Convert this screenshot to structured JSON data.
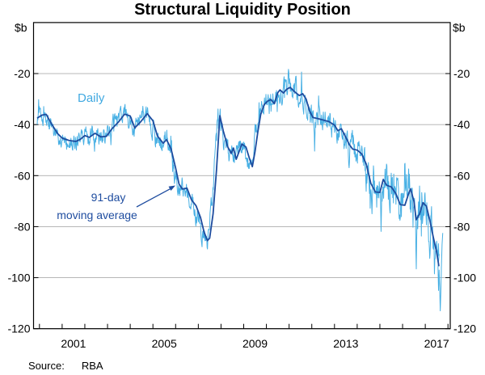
{
  "chart_data": {
    "type": "line",
    "title": "Structural Liquidity Position",
    "source_label": "Source:",
    "source_value": "RBA",
    "colors": {
      "daily_line": "#48B0E4",
      "daily_label": "#41A9E1",
      "ma_line": "#1E4C9F",
      "ma_label": "#1E4C9F",
      "grid": "#ADADAD",
      "axis": "#000000"
    },
    "y_axis": {
      "unit": "$b",
      "min": -120,
      "max": 0,
      "tick_step": 20,
      "tick_values": [
        -20,
        -40,
        -60,
        -80,
        -100,
        -120
      ],
      "tick_labels": [
        "-20",
        "-40",
        "-60",
        "-80",
        "-100",
        "-120"
      ],
      "label_sides": "both",
      "grid": true
    },
    "x_axis": {
      "min": 1999.74,
      "max": 2018.1,
      "tick_years": [
        2000,
        2001,
        2002,
        2003,
        2004,
        2005,
        2006,
        2007,
        2008,
        2009,
        2010,
        2011,
        2012,
        2013,
        2014,
        2015,
        2016,
        2017,
        2018
      ],
      "labels": [
        {
          "text": "2001",
          "t": 2001.5
        },
        {
          "text": "2005",
          "t": 2005.5
        },
        {
          "text": "2009",
          "t": 2009.5
        },
        {
          "text": "2013",
          "t": 2013.5
        },
        {
          "text": "2017",
          "t": 2017.5
        }
      ]
    },
    "annotations": {
      "daily_label": "Daily",
      "ma_label_line1": "91-day",
      "ma_label_line2": "moving average"
    },
    "series": [
      {
        "name": "Daily",
        "color": "#48B0E4",
        "stroke_width": 1,
        "representation": "ma_plus_noise",
        "model": {
          "lead_years": 0.1,
          "step_years": 0.016,
          "start": 1999.9,
          "end": 2017.62,
          "seed": 123457,
          "seasonal_amplitude_ratio": 0.35,
          "amplitude": [
            [
              1999.9,
              3.2
            ],
            [
              2004.5,
              3.6
            ],
            [
              2006.5,
              4.2
            ],
            [
              2008.0,
              3.8
            ],
            [
              2009.5,
              4.0
            ],
            [
              2013.0,
              5.0
            ],
            [
              2014.5,
              7.0
            ],
            [
              2015.2,
              8.0
            ],
            [
              2016.3,
              9.5
            ],
            [
              2017.62,
              9.5
            ]
          ],
          "spikes": [
            [
              2007.4,
              -90
            ],
            [
              2007.96,
              -32.5
            ],
            [
              2010.97,
              -18
            ],
            [
              2011.3,
              -20
            ],
            [
              2014.72,
              -55
            ],
            [
              2015.05,
              -83
            ],
            [
              2016.1,
              -51
            ],
            [
              2016.6,
              -100
            ],
            [
              2017.2,
              -93
            ]
          ],
          "end_points": [
            [
              2017.56,
              -96
            ],
            [
              2017.585,
              -105
            ],
            [
              2017.61,
              -97
            ],
            [
              2017.635,
              -104
            ],
            [
              2017.66,
              -113
            ],
            [
              2017.685,
              -106
            ],
            [
              2017.71,
              -96
            ],
            [
              2017.74,
              -87
            ],
            [
              2017.77,
              -82.5
            ]
          ]
        }
      },
      {
        "name": "91-day moving average",
        "color": "#1E4C9F",
        "stroke_width": 1.8,
        "points": [
          [
            1999.9,
            -37.5
          ],
          [
            2000.1,
            -36.3
          ],
          [
            2000.3,
            -36.0
          ],
          [
            2000.55,
            -40.0
          ],
          [
            2000.8,
            -43.5
          ],
          [
            2001.0,
            -45.3
          ],
          [
            2001.3,
            -46.2
          ],
          [
            2001.6,
            -46.6
          ],
          [
            2001.8,
            -45.8
          ],
          [
            2002.0,
            -44.3
          ],
          [
            2002.2,
            -45.0
          ],
          [
            2002.45,
            -43.4
          ],
          [
            2002.7,
            -44.8
          ],
          [
            2002.95,
            -44.6
          ],
          [
            2003.2,
            -41.6
          ],
          [
            2003.5,
            -38.8
          ],
          [
            2003.75,
            -35.9
          ],
          [
            2004.0,
            -36.6
          ],
          [
            2004.2,
            -41.3
          ],
          [
            2004.45,
            -39.0
          ],
          [
            2004.75,
            -35.7
          ],
          [
            2005.0,
            -38.5
          ],
          [
            2005.2,
            -44.5
          ],
          [
            2005.45,
            -47.3
          ],
          [
            2005.6,
            -45.9
          ],
          [
            2005.8,
            -49.5
          ],
          [
            2006.0,
            -57.0
          ],
          [
            2006.15,
            -63.3
          ],
          [
            2006.3,
            -65.3
          ],
          [
            2006.5,
            -64.9
          ],
          [
            2006.7,
            -69.5
          ],
          [
            2006.9,
            -71.8
          ],
          [
            2007.1,
            -76.5
          ],
          [
            2007.25,
            -82.0
          ],
          [
            2007.4,
            -85.5
          ],
          [
            2007.5,
            -84.5
          ],
          [
            2007.65,
            -75.0
          ],
          [
            2007.8,
            -58.0
          ],
          [
            2007.95,
            -36.5
          ],
          [
            2008.1,
            -42.5
          ],
          [
            2008.3,
            -48.8
          ],
          [
            2008.45,
            -51.3
          ],
          [
            2008.55,
            -49.2
          ],
          [
            2008.67,
            -53.6
          ],
          [
            2008.8,
            -50.5
          ],
          [
            2008.92,
            -47.6
          ],
          [
            2009.1,
            -48.8
          ],
          [
            2009.25,
            -53.2
          ],
          [
            2009.38,
            -56.5
          ],
          [
            2009.5,
            -50.5
          ],
          [
            2009.62,
            -43.0
          ],
          [
            2009.75,
            -36.0
          ],
          [
            2009.9,
            -32.2
          ],
          [
            2010.05,
            -30.8
          ],
          [
            2010.2,
            -30.2
          ],
          [
            2010.35,
            -31.8
          ],
          [
            2010.5,
            -27.5
          ],
          [
            2010.6,
            -26.4
          ],
          [
            2010.75,
            -27.6
          ],
          [
            2010.9,
            -26.1
          ],
          [
            2011.05,
            -25.4
          ],
          [
            2011.25,
            -27.2
          ],
          [
            2011.45,
            -28.6
          ],
          [
            2011.6,
            -27.9
          ],
          [
            2011.75,
            -30.0
          ],
          [
            2011.9,
            -34.6
          ],
          [
            2012.05,
            -37.2
          ],
          [
            2012.25,
            -37.6
          ],
          [
            2012.5,
            -38.2
          ],
          [
            2012.75,
            -38.8
          ],
          [
            2013.0,
            -40.2
          ],
          [
            2013.15,
            -42.4
          ],
          [
            2013.3,
            -41.6
          ],
          [
            2013.5,
            -45.0
          ],
          [
            2013.65,
            -47.8
          ],
          [
            2013.8,
            -49.6
          ],
          [
            2014.0,
            -50.0
          ],
          [
            2014.2,
            -51.5
          ],
          [
            2014.4,
            -55.5
          ],
          [
            2014.6,
            -63.0
          ],
          [
            2014.8,
            -66.4
          ],
          [
            2015.0,
            -66.6
          ],
          [
            2015.15,
            -61.5
          ],
          [
            2015.3,
            -63.8
          ],
          [
            2015.5,
            -64.4
          ],
          [
            2015.7,
            -67.0
          ],
          [
            2015.9,
            -71.4
          ],
          [
            2016.1,
            -71.6
          ],
          [
            2016.25,
            -67.5
          ],
          [
            2016.35,
            -65.2
          ],
          [
            2016.5,
            -70.0
          ],
          [
            2016.6,
            -77.3
          ],
          [
            2016.75,
            -75.0
          ],
          [
            2016.9,
            -70.6
          ],
          [
            2017.05,
            -72.0
          ],
          [
            2017.2,
            -77.5
          ],
          [
            2017.35,
            -84.0
          ],
          [
            2017.5,
            -90.0
          ],
          [
            2017.6,
            -95.5
          ]
        ]
      }
    ]
  }
}
